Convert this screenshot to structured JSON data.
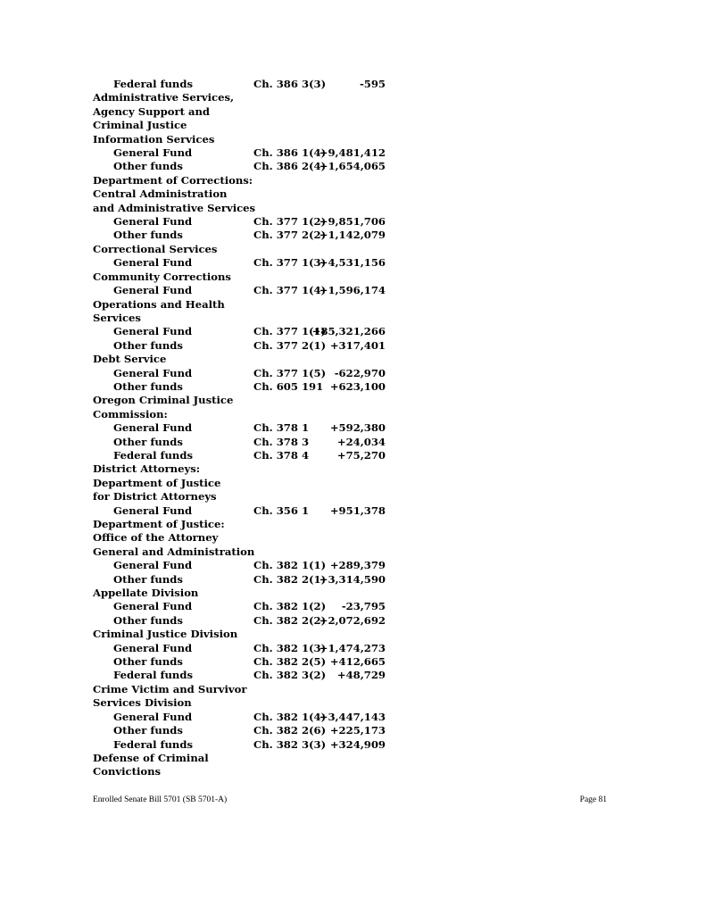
{
  "rows": [
    {
      "type": "item",
      "label": "Federal funds",
      "ch": "Ch. 386 3(3)",
      "amount": "-595"
    },
    {
      "type": "head",
      "label": "Administrative Services,"
    },
    {
      "type": "head",
      "label": "Agency Support and"
    },
    {
      "type": "head",
      "label": "Criminal Justice"
    },
    {
      "type": "head",
      "label": "Information Services"
    },
    {
      "type": "item",
      "label": "General Fund",
      "ch": "Ch. 386 1(4)",
      "amount": "+9,481,412"
    },
    {
      "type": "item",
      "label": "Other funds",
      "ch": "Ch. 386 2(4)",
      "amount": "+1,654,065"
    },
    {
      "type": "head",
      "label": "Department of Corrections:"
    },
    {
      "type": "head",
      "label": "Central Administration"
    },
    {
      "type": "head",
      "label": "and Administrative Services"
    },
    {
      "type": "item",
      "label": "General Fund",
      "ch": "Ch. 377 1(2)",
      "amount": "+9,851,706"
    },
    {
      "type": "item",
      "label": "Other funds",
      "ch": "Ch. 377 2(2)",
      "amount": "+1,142,079"
    },
    {
      "type": "head",
      "label": "Correctional Services"
    },
    {
      "type": "item",
      "label": "General Fund",
      "ch": "Ch. 377 1(3)",
      "amount": "+4,531,156"
    },
    {
      "type": "head",
      "label": "Community Corrections"
    },
    {
      "type": "item",
      "label": "General Fund",
      "ch": "Ch. 377 1(4)",
      "amount": "+1,596,174"
    },
    {
      "type": "head",
      "label": "Operations and Health"
    },
    {
      "type": "head",
      "label": "Services"
    },
    {
      "type": "item",
      "label": "General Fund",
      "ch": "Ch. 377 1(1)",
      "amount": "+85,321,266"
    },
    {
      "type": "item",
      "label": "Other funds",
      "ch": "Ch. 377 2(1)",
      "amount": "+317,401"
    },
    {
      "type": "head",
      "label": "Debt Service"
    },
    {
      "type": "item",
      "label": "General Fund",
      "ch": "Ch. 377 1(5)",
      "amount": "-622,970"
    },
    {
      "type": "item",
      "label": "Other funds",
      "ch": "Ch. 605 191",
      "amount": "+623,100"
    },
    {
      "type": "head",
      "label": "Oregon Criminal Justice"
    },
    {
      "type": "head",
      "label": "Commission:"
    },
    {
      "type": "item",
      "label": "General Fund",
      "ch": "Ch. 378 1",
      "amount": "+592,380"
    },
    {
      "type": "item",
      "label": "Other funds",
      "ch": "Ch. 378 3",
      "amount": "+24,034"
    },
    {
      "type": "item",
      "label": "Federal funds",
      "ch": "Ch. 378 4",
      "amount": "+75,270"
    },
    {
      "type": "head",
      "label": "District Attorneys:"
    },
    {
      "type": "head",
      "label": "Department of Justice"
    },
    {
      "type": "head",
      "label": "for District Attorneys"
    },
    {
      "type": "item",
      "label": "General Fund",
      "ch": "Ch. 356 1",
      "amount": "+951,378"
    },
    {
      "type": "head",
      "label": "Department of Justice:"
    },
    {
      "type": "head",
      "label": "Office of the Attorney"
    },
    {
      "type": "head",
      "label": "General and Administration"
    },
    {
      "type": "item",
      "label": "General Fund",
      "ch": "Ch. 382 1(1)",
      "amount": "+289,379"
    },
    {
      "type": "item",
      "label": "Other funds",
      "ch": "Ch. 382 2(1)",
      "amount": "+3,314,590"
    },
    {
      "type": "head",
      "label": "Appellate Division"
    },
    {
      "type": "item",
      "label": "General Fund",
      "ch": "Ch. 382 1(2)",
      "amount": "-23,795"
    },
    {
      "type": "item",
      "label": "Other funds",
      "ch": "Ch. 382 2(2)",
      "amount": "+2,072,692"
    },
    {
      "type": "head",
      "label": "Criminal Justice Division"
    },
    {
      "type": "item",
      "label": "General Fund",
      "ch": "Ch. 382 1(3)",
      "amount": "+1,474,273"
    },
    {
      "type": "item",
      "label": "Other funds",
      "ch": "Ch. 382 2(5)",
      "amount": "+412,665"
    },
    {
      "type": "item",
      "label": "Federal funds",
      "ch": "Ch. 382 3(2)",
      "amount": "+48,729"
    },
    {
      "type": "head",
      "label": "Crime Victim and Survivor"
    },
    {
      "type": "head",
      "label": "Services Division"
    },
    {
      "type": "item",
      "label": "General Fund",
      "ch": "Ch. 382 1(4)",
      "amount": "+3,447,143"
    },
    {
      "type": "item",
      "label": "Other funds",
      "ch": "Ch. 382 2(6)",
      "amount": "+225,173"
    },
    {
      "type": "item",
      "label": "Federal funds",
      "ch": "Ch. 382 3(3)",
      "amount": "+324,909"
    },
    {
      "type": "head",
      "label": "Defense of Criminal"
    },
    {
      "type": "head",
      "label": "Convictions"
    }
  ],
  "footer": {
    "left": "Enrolled Senate Bill 5701 (SB 5701-A)",
    "right": "Page 81"
  }
}
